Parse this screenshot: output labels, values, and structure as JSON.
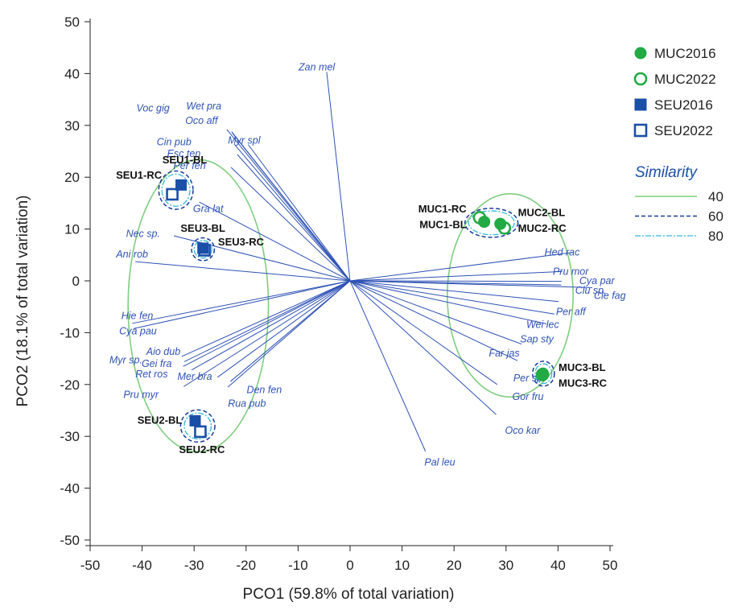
{
  "chart_data": {
    "type": "scatter",
    "title": "",
    "xlabel": "PCO1 (59.8% of total variation)",
    "ylabel": "PCO2 (18.1% of total variation)",
    "xlim": [
      -50,
      50
    ],
    "ylim": [
      -50,
      50
    ],
    "xticks": [
      "-50",
      "-40",
      "-30",
      "-20",
      "-10",
      "0",
      "10",
      "20",
      "30",
      "40",
      "50"
    ],
    "yticks": [
      "-50",
      "-40",
      "-30",
      "-20",
      "-10",
      "0",
      "10",
      "20",
      "30",
      "40",
      "50"
    ],
    "grid": false,
    "legend_position": "top-right",
    "colors": {
      "muc": "#22aa44",
      "seu": "#1a4fa8",
      "vector": "#2f52b5",
      "sim40": "#7fcd7f",
      "sim60": "#1a3b9a",
      "sim80": "#34b8d8"
    },
    "series": [
      {
        "name": "MUC2016",
        "marker": "filled-circle",
        "points": [
          {
            "label": "MUC1-BL",
            "x": 25.8,
            "y": 11.4
          },
          {
            "label": "MUC2-BL",
            "x": 28.9,
            "y": 11.0
          },
          {
            "label": "MUC3-BL",
            "x": 37.1,
            "y": -17.9
          }
        ]
      },
      {
        "name": "MUC2022",
        "marker": "open-circle",
        "points": [
          {
            "label": "MUC1-RC",
            "x": 24.9,
            "y": 12.2
          },
          {
            "label": "MUC2-RC",
            "x": 29.7,
            "y": 10.2
          },
          {
            "label": "MUC3-RC",
            "x": 37.0,
            "y": -18.1
          }
        ]
      },
      {
        "name": "SEU2016",
        "marker": "filled-square",
        "points": [
          {
            "label": "SEU1-BL",
            "x": -32.5,
            "y": 18.5
          },
          {
            "label": "SEU2-BL",
            "x": -29.8,
            "y": -27.0
          },
          {
            "label": "SEU3-BL",
            "x": -28.3,
            "y": 6.3
          }
        ]
      },
      {
        "name": "SEU2022",
        "marker": "open-square",
        "points": [
          {
            "label": "SEU1-RC",
            "x": -34.2,
            "y": 16.7
          },
          {
            "label": "SEU2-RC",
            "x": -28.8,
            "y": -29.1
          },
          {
            "label": "SEU3-RC",
            "x": -28.0,
            "y": 5.9
          }
        ]
      }
    ],
    "sample_labels": [
      {
        "text": "SEU1-BL",
        "x": -31.8,
        "y": 22.7,
        "anchor": "middle"
      },
      {
        "text": "SEU1-RC",
        "x": -36.2,
        "y": 19.7,
        "anchor": "end"
      },
      {
        "text": "SEU3-BL",
        "x": -28.3,
        "y": 9.5,
        "anchor": "middle"
      },
      {
        "text": "SEU3-RC",
        "x": -25.4,
        "y": 6.8,
        "anchor": "start"
      },
      {
        "text": "SEU2-BL",
        "x": -32.3,
        "y": -27.6,
        "anchor": "end"
      },
      {
        "text": "SEU2-RC",
        "x": -28.5,
        "y": -33.2,
        "anchor": "middle"
      },
      {
        "text": "MUC1-RC",
        "x": 22.4,
        "y": 13.2,
        "anchor": "end"
      },
      {
        "text": "MUC1-BL",
        "x": 22.4,
        "y": 10.2,
        "anchor": "end"
      },
      {
        "text": "MUC2-BL",
        "x": 32.3,
        "y": 12.5,
        "anchor": "start"
      },
      {
        "text": "MUC2-RC",
        "x": 32.3,
        "y": 9.5,
        "anchor": "start"
      },
      {
        "text": "MUC3-BL",
        "x": 40.1,
        "y": -17.4,
        "anchor": "start"
      },
      {
        "text": "MUC3-RC",
        "x": 40.1,
        "y": -20.4,
        "anchor": "start"
      }
    ],
    "vectors": [
      {
        "name": "Zan mel",
        "x": -4.5,
        "y": 40.3,
        "lx": -9.9,
        "ly": 40.6,
        "anchor": "start"
      },
      {
        "name": "Voc gig",
        "x": -23.7,
        "y": 29.2,
        "lx": -41.1,
        "ly": 32.7,
        "anchor": "start"
      },
      {
        "name": "Wet pra",
        "x": -22.8,
        "y": 28.8,
        "lx": -31.5,
        "ly": 33.1,
        "anchor": "start"
      },
      {
        "name": "Oco aff",
        "x": -22.7,
        "y": 28.6,
        "lx": -31.7,
        "ly": 30.3,
        "anchor": "start"
      },
      {
        "name": "Cin pub",
        "x": -22.3,
        "y": 26.4,
        "lx": -37.2,
        "ly": 26.2,
        "anchor": "start"
      },
      {
        "name": "Myr spl",
        "x": -19.6,
        "y": 26.3,
        "lx": -23.5,
        "ly": 26.5,
        "anchor": "start"
      },
      {
        "name": "Esc ten",
        "x": -21.7,
        "y": 24.4,
        "lx": -35.2,
        "ly": 23.9,
        "anchor": "start"
      },
      {
        "name": "Per fen",
        "x": -22.9,
        "y": 21.9,
        "lx": -34.0,
        "ly": 21.6,
        "anchor": "start"
      },
      {
        "name": "Gra lat",
        "x": -29.0,
        "y": 15.2,
        "lx": -30.2,
        "ly": 13.3,
        "anchor": "start"
      },
      {
        "name": "Nec sp.",
        "x": -33.9,
        "y": 8.7,
        "lx": -43.1,
        "ly": 8.5,
        "anchor": "start"
      },
      {
        "name": "Ani rob",
        "x": -41.3,
        "y": 3.7,
        "lx": -45.0,
        "ly": 4.5,
        "anchor": "start"
      },
      {
        "name": "Hie fen",
        "x": -41.9,
        "y": -8.2,
        "lx": -44.0,
        "ly": -7.4,
        "anchor": "start"
      },
      {
        "name": "Cya pau",
        "x": -41.6,
        "y": -9.2,
        "lx": -44.4,
        "ly": -10.3,
        "anchor": "start"
      },
      {
        "name": "Aio dub",
        "x": -32.4,
        "y": -14.6,
        "lx": -39.2,
        "ly": -14.3,
        "anchor": "start"
      },
      {
        "name": "Gei fra",
        "x": -31.9,
        "y": -15.6,
        "lx": -40.1,
        "ly": -16.6,
        "anchor": "start"
      },
      {
        "name": "Myr sp.",
        "x": -32.1,
        "y": -16.5,
        "lx": -46.3,
        "ly": -15.9,
        "anchor": "start"
      },
      {
        "name": "Ret ros",
        "x": -30.5,
        "y": -17.2,
        "lx": -41.3,
        "ly": -18.6,
        "anchor": "start"
      },
      {
        "name": "Mer bra",
        "x": -25.5,
        "y": -18.6,
        "lx": -33.2,
        "ly": -19.1,
        "anchor": "start"
      },
      {
        "name": "Den fen",
        "x": -23.0,
        "y": -19.4,
        "lx": -19.9,
        "ly": -21.7,
        "anchor": "start"
      },
      {
        "name": "Rua pub",
        "x": -23.5,
        "y": -20.5,
        "lx": -23.5,
        "ly": -24.3,
        "anchor": "start"
      },
      {
        "name": "Pru myr",
        "x": -32.0,
        "y": -20.4,
        "lx": -43.6,
        "ly": -22.6,
        "anchor": "start"
      },
      {
        "name": "Hed rac",
        "x": 42.9,
        "y": 5.5,
        "lx": 37.4,
        "ly": 4.9,
        "anchor": "start"
      },
      {
        "name": "Pru mor",
        "x": 40.8,
        "y": 1.8,
        "lx": 39.0,
        "ly": 1.2,
        "anchor": "start"
      },
      {
        "name": "Cya par",
        "x": 40.7,
        "y": -0.1,
        "lx": 44.1,
        "ly": -0.6,
        "anchor": "start"
      },
      {
        "name": "Clu sp.",
        "x": 40.6,
        "y": -0.8,
        "lx": 43.3,
        "ly": -2.5,
        "anchor": "start"
      },
      {
        "name": "Cle fag",
        "x": 46.6,
        "y": -1.3,
        "lx": 46.9,
        "ly": -3.5,
        "anchor": "start"
      },
      {
        "name": "Per aff",
        "x": 40.1,
        "y": -4.0,
        "lx": 39.6,
        "ly": -6.6,
        "anchor": "start"
      },
      {
        "name": "Wei lec",
        "x": 39.3,
        "y": -6.4,
        "lx": 33.9,
        "ly": -9.1,
        "anchor": "start"
      },
      {
        "name": "Sap sty",
        "x": 37.8,
        "y": -8.3,
        "lx": 32.7,
        "ly": -11.9,
        "anchor": "start"
      },
      {
        "name": "Far jas",
        "x": 33.0,
        "y": -12.2,
        "lx": 26.7,
        "ly": -14.6,
        "anchor": "start"
      },
      {
        "name": "Per sp.",
        "x": 32.2,
        "y": -15.4,
        "lx": 31.4,
        "ly": -19.4,
        "anchor": "start"
      },
      {
        "name": "Gor fru",
        "x": 28.3,
        "y": -20.0,
        "lx": 31.2,
        "ly": -23.0,
        "anchor": "start"
      },
      {
        "name": "Oco kar",
        "x": 28.1,
        "y": -25.8,
        "lx": 29.8,
        "ly": -29.5,
        "anchor": "start"
      },
      {
        "name": "Pal leu",
        "x": 14.5,
        "y": -32.9,
        "lx": 14.3,
        "ly": -35.6,
        "anchor": "start"
      }
    ],
    "similarity": {
      "title": "Similarity",
      "levels": [
        {
          "label": "40",
          "style": "sim40"
        },
        {
          "label": "60",
          "style": "sim60"
        },
        {
          "label": "80",
          "style": "sim80"
        }
      ],
      "contours": [
        {
          "level": "40",
          "cx": -29.2,
          "cy": -4.8,
          "rx": 13.5,
          "ry": 28.2
        },
        {
          "level": "40",
          "cx": 30.8,
          "cy": -2.8,
          "rx": 12.1,
          "ry": 19.6
        },
        {
          "level": "60",
          "cx": -33.5,
          "cy": 17.5,
          "rx": 3.3,
          "ry": 3.7
        },
        {
          "level": "80",
          "cx": -33.5,
          "cy": 17.5,
          "rx": 2.7,
          "ry": 3.1
        },
        {
          "level": "60",
          "cx": -28.3,
          "cy": 6.1,
          "rx": 2.2,
          "ry": 2.2
        },
        {
          "level": "80",
          "cx": -28.3,
          "cy": 6.1,
          "rx": 1.7,
          "ry": 1.7
        },
        {
          "level": "60",
          "cx": -29.3,
          "cy": -28.0,
          "rx": 3.3,
          "ry": 3.1
        },
        {
          "level": "80",
          "cx": -29.3,
          "cy": -28.0,
          "rx": 2.6,
          "ry": 2.5
        },
        {
          "level": "60",
          "cx": 27.2,
          "cy": 11.2,
          "rx": 5.1,
          "ry": 2.8
        },
        {
          "level": "80",
          "cx": 27.2,
          "cy": 11.2,
          "rx": 4.4,
          "ry": 2.3
        },
        {
          "level": "60",
          "cx": 37.2,
          "cy": -17.9,
          "rx": 2.1,
          "ry": 2.4
        },
        {
          "level": "80",
          "cx": 37.2,
          "cy": -17.9,
          "rx": 1.6,
          "ry": 1.9
        }
      ]
    }
  }
}
